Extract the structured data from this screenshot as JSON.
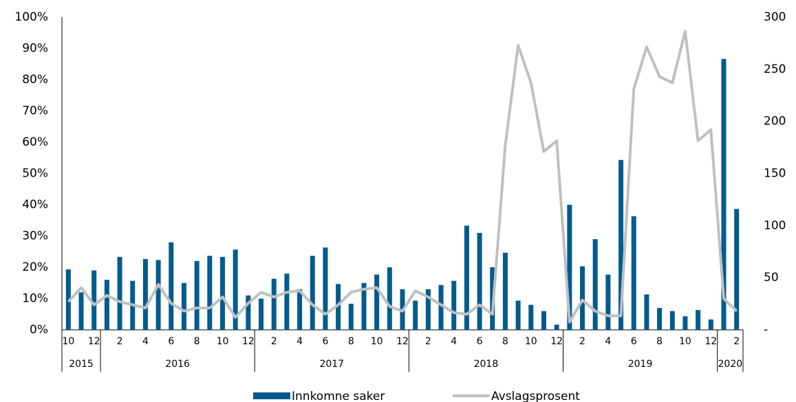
{
  "chart_data": {
    "type": "bar-line",
    "categories": [
      "10",
      null,
      "12",
      null,
      "2",
      null,
      "4",
      null,
      "6",
      null,
      "8",
      null,
      "10",
      null,
      "12",
      null,
      "2",
      null,
      "4",
      null,
      "6",
      null,
      "8",
      null,
      "10",
      null,
      "12",
      null,
      "2",
      null,
      "4",
      null,
      "6",
      null,
      "8",
      null,
      "10",
      null,
      "12",
      null,
      "2",
      null,
      "4",
      null,
      "6",
      null,
      "8",
      null,
      "10",
      null,
      "12",
      null,
      "2"
    ],
    "years": [
      "2015",
      "2016",
      "2017",
      "2018",
      "2019",
      "2020"
    ],
    "series": [
      {
        "name": "Innkomne saker",
        "color": "#005b8f",
        "axis": "y2",
        "kind": "bar",
        "values": [
          58,
          36,
          57,
          48,
          70,
          47,
          68,
          67,
          84,
          45,
          66,
          71,
          70,
          77,
          33,
          30,
          49,
          54,
          39,
          71,
          79,
          44,
          25,
          45,
          53,
          60,
          39,
          28,
          39,
          43,
          47,
          100,
          93,
          60,
          74,
          28,
          24,
          18,
          5,
          120,
          61,
          87,
          53,
          163,
          109,
          34,
          21,
          18,
          13,
          19,
          10,
          260,
          116
        ]
      },
      {
        "name": "Avslagsprosent",
        "color": "#bfc0c2",
        "axis": "y",
        "kind": "line",
        "values": [
          9,
          13.5,
          8,
          11,
          9,
          8,
          7,
          14.5,
          8.5,
          6,
          7,
          7,
          10.5,
          4,
          8.5,
          12,
          10.5,
          12,
          12.5,
          8,
          5,
          8,
          12,
          13,
          13.5,
          7.5,
          6,
          12.5,
          10.5,
          8,
          5.5,
          5,
          8,
          5,
          59,
          91,
          79,
          57,
          60.5,
          2.5,
          9.5,
          6,
          4.5,
          4.5,
          77,
          90.5,
          81,
          79,
          95.5,
          60.5,
          64,
          10,
          6
        ]
      }
    ],
    "ylim": [
      0,
      100
    ],
    "yticks": [
      {
        "value": 0,
        "label": "0%"
      },
      {
        "value": 10,
        "label": "10%"
      },
      {
        "value": 20,
        "label": "20%"
      },
      {
        "value": 30,
        "label": "30%"
      },
      {
        "value": 40,
        "label": "40%"
      },
      {
        "value": 50,
        "label": "50%"
      },
      {
        "value": 60,
        "label": "60%"
      },
      {
        "value": 70,
        "label": "70%"
      },
      {
        "value": 80,
        "label": "80%"
      },
      {
        "value": 90,
        "label": "90%"
      },
      {
        "value": 100,
        "label": "100%"
      }
    ],
    "y2lim": [
      0,
      300
    ],
    "y2ticks": [
      {
        "value": 0,
        "label": "-"
      },
      50,
      100,
      150,
      200,
      250,
      300
    ],
    "legend": "bottom"
  }
}
